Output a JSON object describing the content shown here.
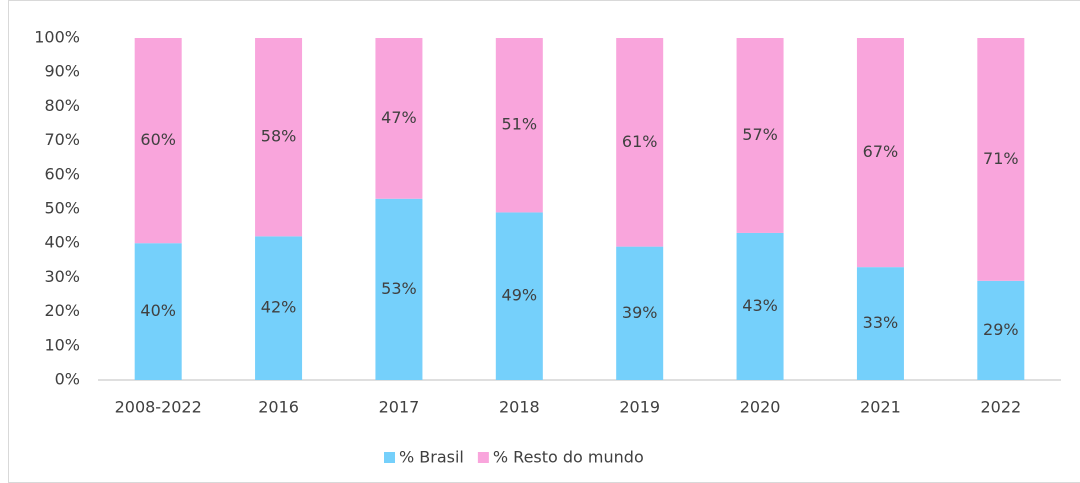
{
  "chart_data": {
    "type": "stacked_bar",
    "categories": [
      "2008-2022",
      "2016",
      "2017",
      "2018",
      "2019",
      "2020",
      "2021",
      "2022"
    ],
    "series": [
      {
        "name": "% Brasil",
        "color": "#75d0fb",
        "values": [
          40,
          42,
          53,
          49,
          39,
          43,
          33,
          29
        ],
        "value_labels": [
          "40%",
          "42%",
          "53%",
          "49%",
          "39%",
          "43%",
          "33%",
          "29%"
        ]
      },
      {
        "name": "% Resto do mundo",
        "color": "#f9a5dc",
        "values": [
          60,
          58,
          47,
          51,
          61,
          57,
          67,
          71
        ],
        "value_labels": [
          "60%",
          "58%",
          "47%",
          "51%",
          "61%",
          "57%",
          "67%",
          "71%"
        ]
      }
    ],
    "ylim": [
      0,
      100
    ],
    "yticks": [
      {
        "value": 0,
        "label": "0%"
      },
      {
        "value": 10,
        "label": "10%"
      },
      {
        "value": 20,
        "label": "20%"
      },
      {
        "value": 30,
        "label": "30%"
      },
      {
        "value": 40,
        "label": "40%"
      },
      {
        "value": 50,
        "label": "50%"
      },
      {
        "value": 60,
        "label": "60%"
      },
      {
        "value": 70,
        "label": "70%"
      },
      {
        "value": 80,
        "label": "80%"
      },
      {
        "value": 90,
        "label": "90%"
      },
      {
        "value": 100,
        "label": "100%"
      }
    ],
    "grid": false,
    "legend": "bottom"
  }
}
